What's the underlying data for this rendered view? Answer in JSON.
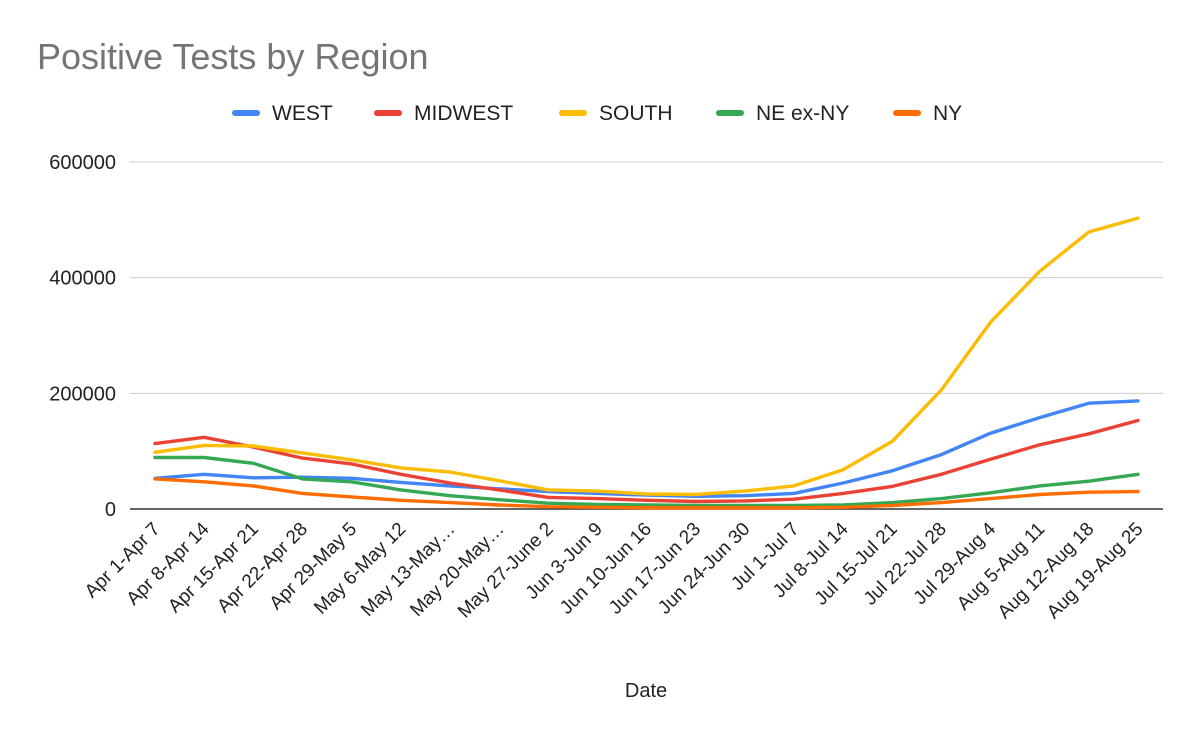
{
  "chart_data": {
    "type": "line",
    "title": "Positive Tests by Region",
    "xlabel": "Date",
    "ylabel": "",
    "ylim": [
      0,
      600000
    ],
    "yticks": [
      0,
      200000,
      400000,
      600000
    ],
    "ytick_labels": [
      "0",
      "200000",
      "400000",
      "600000"
    ],
    "legend_position": "top",
    "grid": true,
    "categories": [
      "Apr 1-Apr 7",
      "Apr 8-Apr 14",
      "Apr 15-Apr 21",
      "Apr 22-Apr 28",
      "Apr 29-May 5",
      "May 6-May 12",
      "May 13-May…",
      "May 20-May…",
      "May 27-June 2",
      "Jun 3-Jun 9",
      "Jun 10-Jun 16",
      "Jun 17-Jun 23",
      "Jun 24-Jun 30",
      "Jul 1-Jul 7",
      "Jul 8-Jul 14",
      "Jul 15-Jul 21",
      "Jul 22-Jul 28",
      "Jul 29-Aug 4",
      "Aug 5-Aug 11",
      "Aug 12-Aug 18",
      "Aug 19-Aug 25"
    ],
    "series": [
      {
        "name": "WEST",
        "color": "#4285f4",
        "values": [
          53000,
          60000,
          54000,
          55000,
          53000,
          46000,
          40000,
          35000,
          30000,
          27000,
          24000,
          22000,
          23000,
          27000,
          45000,
          66000,
          94000,
          131000,
          158000,
          183000,
          187000
        ]
      },
      {
        "name": "MIDWEST",
        "color": "#ea4335",
        "values": [
          113000,
          124000,
          107000,
          88000,
          78000,
          60000,
          45000,
          33000,
          20000,
          18000,
          15000,
          13000,
          14000,
          17000,
          27000,
          39000,
          60000,
          86000,
          111000,
          130000,
          153000
        ]
      },
      {
        "name": "SOUTH",
        "color": "#fbbc04",
        "values": [
          98000,
          110000,
          109000,
          97000,
          85000,
          71000,
          64000,
          49000,
          33000,
          31000,
          26000,
          25000,
          31000,
          40000,
          68000,
          117000,
          206000,
          323000,
          411000,
          479000,
          503000
        ]
      },
      {
        "name": "NE ex-NY",
        "color": "#34a853",
        "values": [
          89000,
          89000,
          79000,
          52000,
          47000,
          33000,
          23000,
          16000,
          10000,
          8000,
          7000,
          6000,
          6000,
          6000,
          7000,
          11000,
          18000,
          28000,
          40000,
          48000,
          60000
        ]
      },
      {
        "name": "NY",
        "color": "#ff6d01",
        "values": [
          52000,
          47000,
          40000,
          27000,
          21000,
          15000,
          11000,
          7000,
          4000,
          3000,
          2000,
          2000,
          2000,
          2000,
          3000,
          6000,
          11000,
          18000,
          25000,
          29000,
          30000
        ]
      }
    ]
  }
}
